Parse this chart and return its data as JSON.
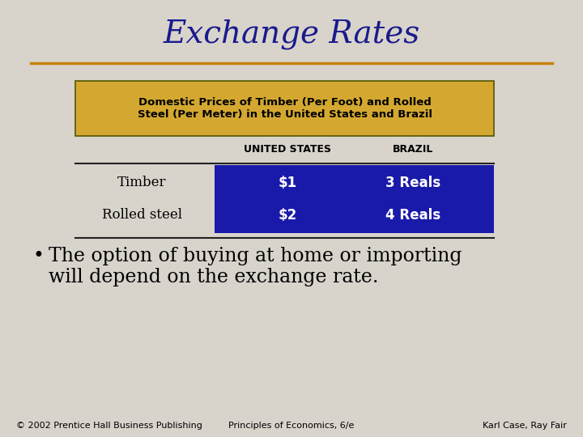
{
  "title": "Exchange Rates",
  "title_color": "#1a1a8c",
  "title_fontsize": 28,
  "background_color": "#d8d4cc",
  "orange_line_color": "#c8820a",
  "table_header_text": "Domestic Prices of Timber (Per Foot) and Rolled\nSteel (Per Meter) in the United States and Brazil",
  "table_header_bg": "#d4a830",
  "table_header_border": "#555500",
  "table_header_text_color": "#000000",
  "col1_header": "UNITED STATES",
  "col2_header": "BRAZIL",
  "col_header_color": "#000000",
  "col_header_fontsize": 9,
  "row_labels": [
    "Timber",
    "Rolled steel"
  ],
  "col1_values": [
    "$1",
    "$2"
  ],
  "col2_values": [
    "3 Reals",
    "4 Reals"
  ],
  "data_cell_bg": "#1a1aaa",
  "data_cell_text_color": "#ffffff",
  "row_label_color": "#000000",
  "bullet_text_line1": "The option of buying at home or importing",
  "bullet_text_line2": "will depend on the exchange rate.",
  "bullet_fontsize": 17,
  "bullet_text_color": "#000000",
  "footer_left": "© 2002 Prentice Hall Business Publishing",
  "footer_center": "Principles of Economics, 6/e",
  "footer_right": "Karl Case, Ray Fair",
  "footer_fontsize": 8,
  "footer_color": "#000000"
}
